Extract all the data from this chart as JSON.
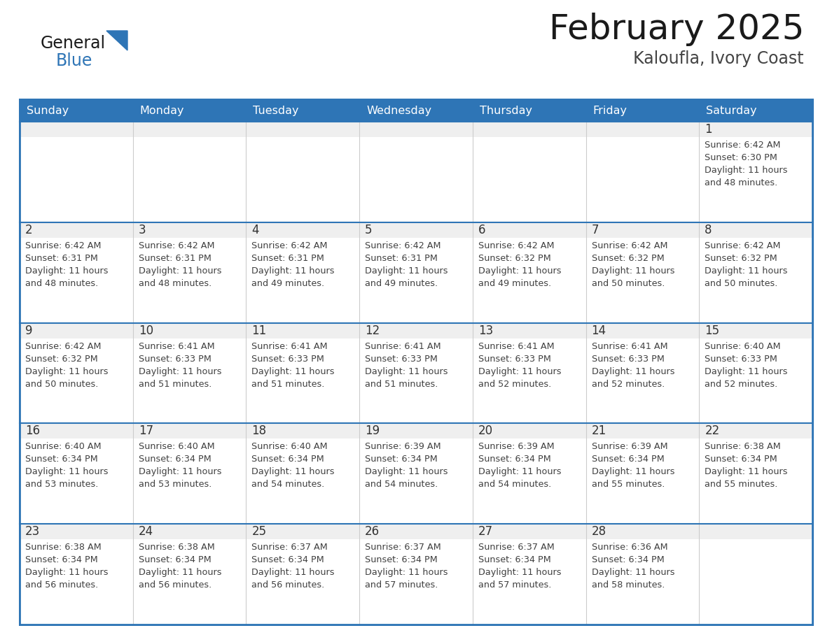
{
  "title": "February 2025",
  "subtitle": "Kaloufla, Ivory Coast",
  "header_bg": "#2E75B6",
  "header_text_color": "#FFFFFF",
  "day_names": [
    "Sunday",
    "Monday",
    "Tuesday",
    "Wednesday",
    "Thursday",
    "Friday",
    "Saturday"
  ],
  "cell_bg": "#FFFFFF",
  "cell_day_bg": "#EFEFEF",
  "cell_border_color": "#2E75B6",
  "cell_divider_color": "#CCCCCC",
  "day_number_color": "#333333",
  "info_text_color": "#404040",
  "title_color": "#1a1a1a",
  "subtitle_color": "#444444",
  "logo_general_color": "#1a1a1a",
  "logo_blue_color": "#2E75B6",
  "logo_triangle_color": "#2E75B6",
  "calendar": [
    [
      {
        "day": 0,
        "info": ""
      },
      {
        "day": 0,
        "info": ""
      },
      {
        "day": 0,
        "info": ""
      },
      {
        "day": 0,
        "info": ""
      },
      {
        "day": 0,
        "info": ""
      },
      {
        "day": 0,
        "info": ""
      },
      {
        "day": 1,
        "info": "Sunrise: 6:42 AM\nSunset: 6:30 PM\nDaylight: 11 hours\nand 48 minutes."
      }
    ],
    [
      {
        "day": 2,
        "info": "Sunrise: 6:42 AM\nSunset: 6:31 PM\nDaylight: 11 hours\nand 48 minutes."
      },
      {
        "day": 3,
        "info": "Sunrise: 6:42 AM\nSunset: 6:31 PM\nDaylight: 11 hours\nand 48 minutes."
      },
      {
        "day": 4,
        "info": "Sunrise: 6:42 AM\nSunset: 6:31 PM\nDaylight: 11 hours\nand 49 minutes."
      },
      {
        "day": 5,
        "info": "Sunrise: 6:42 AM\nSunset: 6:31 PM\nDaylight: 11 hours\nand 49 minutes."
      },
      {
        "day": 6,
        "info": "Sunrise: 6:42 AM\nSunset: 6:32 PM\nDaylight: 11 hours\nand 49 minutes."
      },
      {
        "day": 7,
        "info": "Sunrise: 6:42 AM\nSunset: 6:32 PM\nDaylight: 11 hours\nand 50 minutes."
      },
      {
        "day": 8,
        "info": "Sunrise: 6:42 AM\nSunset: 6:32 PM\nDaylight: 11 hours\nand 50 minutes."
      }
    ],
    [
      {
        "day": 9,
        "info": "Sunrise: 6:42 AM\nSunset: 6:32 PM\nDaylight: 11 hours\nand 50 minutes."
      },
      {
        "day": 10,
        "info": "Sunrise: 6:41 AM\nSunset: 6:33 PM\nDaylight: 11 hours\nand 51 minutes."
      },
      {
        "day": 11,
        "info": "Sunrise: 6:41 AM\nSunset: 6:33 PM\nDaylight: 11 hours\nand 51 minutes."
      },
      {
        "day": 12,
        "info": "Sunrise: 6:41 AM\nSunset: 6:33 PM\nDaylight: 11 hours\nand 51 minutes."
      },
      {
        "day": 13,
        "info": "Sunrise: 6:41 AM\nSunset: 6:33 PM\nDaylight: 11 hours\nand 52 minutes."
      },
      {
        "day": 14,
        "info": "Sunrise: 6:41 AM\nSunset: 6:33 PM\nDaylight: 11 hours\nand 52 minutes."
      },
      {
        "day": 15,
        "info": "Sunrise: 6:40 AM\nSunset: 6:33 PM\nDaylight: 11 hours\nand 52 minutes."
      }
    ],
    [
      {
        "day": 16,
        "info": "Sunrise: 6:40 AM\nSunset: 6:34 PM\nDaylight: 11 hours\nand 53 minutes."
      },
      {
        "day": 17,
        "info": "Sunrise: 6:40 AM\nSunset: 6:34 PM\nDaylight: 11 hours\nand 53 minutes."
      },
      {
        "day": 18,
        "info": "Sunrise: 6:40 AM\nSunset: 6:34 PM\nDaylight: 11 hours\nand 54 minutes."
      },
      {
        "day": 19,
        "info": "Sunrise: 6:39 AM\nSunset: 6:34 PM\nDaylight: 11 hours\nand 54 minutes."
      },
      {
        "day": 20,
        "info": "Sunrise: 6:39 AM\nSunset: 6:34 PM\nDaylight: 11 hours\nand 54 minutes."
      },
      {
        "day": 21,
        "info": "Sunrise: 6:39 AM\nSunset: 6:34 PM\nDaylight: 11 hours\nand 55 minutes."
      },
      {
        "day": 22,
        "info": "Sunrise: 6:38 AM\nSunset: 6:34 PM\nDaylight: 11 hours\nand 55 minutes."
      }
    ],
    [
      {
        "day": 23,
        "info": "Sunrise: 6:38 AM\nSunset: 6:34 PM\nDaylight: 11 hours\nand 56 minutes."
      },
      {
        "day": 24,
        "info": "Sunrise: 6:38 AM\nSunset: 6:34 PM\nDaylight: 11 hours\nand 56 minutes."
      },
      {
        "day": 25,
        "info": "Sunrise: 6:37 AM\nSunset: 6:34 PM\nDaylight: 11 hours\nand 56 minutes."
      },
      {
        "day": 26,
        "info": "Sunrise: 6:37 AM\nSunset: 6:34 PM\nDaylight: 11 hours\nand 57 minutes."
      },
      {
        "day": 27,
        "info": "Sunrise: 6:37 AM\nSunset: 6:34 PM\nDaylight: 11 hours\nand 57 minutes."
      },
      {
        "day": 28,
        "info": "Sunrise: 6:36 AM\nSunset: 6:34 PM\nDaylight: 11 hours\nand 58 minutes."
      },
      {
        "day": 0,
        "info": ""
      }
    ]
  ]
}
